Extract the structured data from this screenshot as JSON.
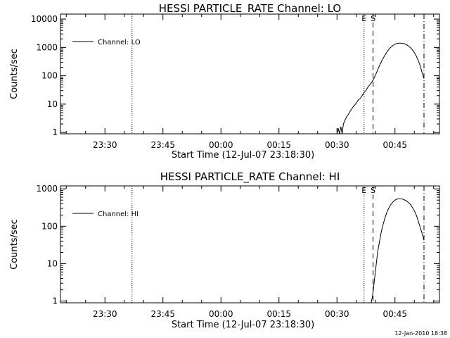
{
  "stamp": "12-Jan-2010 18:38",
  "chart_data": [
    {
      "type": "line",
      "title": "HESSI PARTICLE_RATE Channel: LO",
      "xlabel": "Start Time (12-Jul-07 23:18:30)",
      "ylabel": "Counts/sec",
      "x_ticks": [
        "23:30",
        "23:45",
        "00:00",
        "00:15",
        "00:30",
        "00:45"
      ],
      "y_ticks": [
        "1",
        "10",
        "100",
        "1000",
        "10000"
      ],
      "yscale": "log",
      "xlim": [
        "23:18:30",
        "00:56:30"
      ],
      "ylim": [
        0.9,
        15000
      ],
      "legend": "top-left",
      "series": [
        {
          "name": "Channel: LO",
          "points": [
            [
              "00:30:00",
              0.8
            ],
            [
              "00:30:20",
              1.4
            ],
            [
              "00:30:40",
              0.8
            ],
            [
              "00:31:00",
              1.6
            ],
            [
              "00:31:20",
              0.9
            ],
            [
              "00:31:40",
              2.0
            ],
            [
              "00:32:00",
              2.6
            ],
            [
              "00:32:30",
              3.6
            ],
            [
              "00:33:00",
              4.5
            ],
            [
              "00:33:30",
              5.8
            ],
            [
              "00:34:00",
              7.5
            ],
            [
              "00:34:30",
              9.0
            ],
            [
              "00:35:00",
              11
            ],
            [
              "00:35:30",
              14
            ],
            [
              "00:36:00",
              16
            ],
            [
              "00:36:30",
              20
            ],
            [
              "00:37:00",
              26
            ],
            [
              "00:37:30",
              30
            ],
            [
              "00:38:00",
              40
            ],
            [
              "00:38:30",
              48
            ],
            [
              "00:39:00",
              60
            ],
            [
              "00:39:30",
              78
            ],
            [
              "00:40:00",
              110
            ],
            [
              "00:40:30",
              160
            ],
            [
              "00:41:00",
              230
            ],
            [
              "00:41:30",
              320
            ],
            [
              "00:42:00",
              430
            ],
            [
              "00:42:30",
              560
            ],
            [
              "00:43:00",
              720
            ],
            [
              "00:43:30",
              880
            ],
            [
              "00:44:00",
              1040
            ],
            [
              "00:44:30",
              1180
            ],
            [
              "00:45:00",
              1300
            ],
            [
              "00:45:30",
              1380
            ],
            [
              "00:46:00",
              1420
            ],
            [
              "00:46:30",
              1420
            ],
            [
              "00:47:00",
              1390
            ],
            [
              "00:47:30",
              1330
            ],
            [
              "00:48:00",
              1240
            ],
            [
              "00:48:30",
              1120
            ],
            [
              "00:49:00",
              980
            ],
            [
              "00:49:30",
              820
            ],
            [
              "00:50:00",
              660
            ],
            [
              "00:50:30",
              500
            ],
            [
              "00:51:00",
              350
            ],
            [
              "00:51:30",
              230
            ],
            [
              "00:52:00",
              130
            ],
            [
              "00:52:30",
              80
            ]
          ]
        }
      ],
      "markers": [
        {
          "time": "23:37:00",
          "style": "dotted",
          "label": ""
        },
        {
          "time": "00:37:00",
          "style": "dotted",
          "label": "E"
        },
        {
          "time": "00:39:20",
          "style": "dashed",
          "label": "S"
        },
        {
          "time": "00:52:30",
          "style": "dashdot",
          "label": ""
        }
      ]
    },
    {
      "type": "line",
      "title": "HESSI PARTICLE_RATE Channel: HI",
      "xlabel": "Start Time (12-Jul-07 23:18:30)",
      "ylabel": "Counts/sec",
      "x_ticks": [
        "23:30",
        "23:45",
        "00:00",
        "00:15",
        "00:30",
        "00:45"
      ],
      "y_ticks": [
        "1",
        "10",
        "100",
        "1000"
      ],
      "yscale": "log",
      "xlim": [
        "23:18:30",
        "00:56:30"
      ],
      "ylim": [
        0.9,
        1200
      ],
      "legend": "top-left",
      "series": [
        {
          "name": "Channel: HI",
          "points": [
            [
              "00:38:50",
              0.8
            ],
            [
              "00:39:10",
              1.3
            ],
            [
              "00:39:30",
              2.5
            ],
            [
              "00:39:50",
              5
            ],
            [
              "00:40:10",
              10
            ],
            [
              "00:40:30",
              20
            ],
            [
              "00:41:00",
              40
            ],
            [
              "00:41:30",
              75
            ],
            [
              "00:42:00",
              120
            ],
            [
              "00:42:30",
              180
            ],
            [
              "00:43:00",
              250
            ],
            [
              "00:43:30",
              320
            ],
            [
              "00:44:00",
              390
            ],
            [
              "00:44:30",
              450
            ],
            [
              "00:45:00",
              500
            ],
            [
              "00:45:30",
              530
            ],
            [
              "00:46:00",
              545
            ],
            [
              "00:46:30",
              545
            ],
            [
              "00:47:00",
              530
            ],
            [
              "00:47:30",
              505
            ],
            [
              "00:48:00",
              470
            ],
            [
              "00:48:30",
              430
            ],
            [
              "00:49:00",
              380
            ],
            [
              "00:49:30",
              320
            ],
            [
              "00:50:00",
              260
            ],
            [
              "00:50:30",
              200
            ],
            [
              "00:51:00",
              140
            ],
            [
              "00:51:30",
              95
            ],
            [
              "00:52:00",
              65
            ],
            [
              "00:52:30",
              42
            ]
          ]
        }
      ],
      "markers": [
        {
          "time": "23:37:00",
          "style": "dotted",
          "label": ""
        },
        {
          "time": "00:37:00",
          "style": "dotted",
          "label": "E"
        },
        {
          "time": "00:39:20",
          "style": "dashed",
          "label": "S"
        },
        {
          "time": "00:52:30",
          "style": "dashdot",
          "label": ""
        }
      ]
    }
  ]
}
